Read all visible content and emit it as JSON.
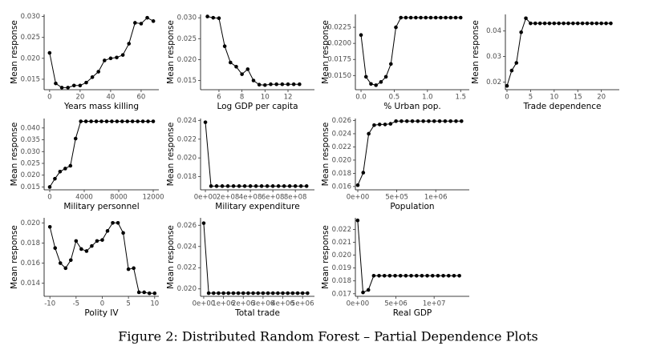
{
  "chart_data": [
    {
      "type": "line",
      "xlabel": "Years mass killing",
      "ylabel": "Mean response",
      "x": [
        0,
        4,
        8,
        12,
        16,
        20,
        24,
        28,
        32,
        36,
        40,
        44,
        48,
        52,
        56,
        60,
        64,
        68
      ],
      "values": [
        0.0213,
        0.014,
        0.013,
        0.013,
        0.0135,
        0.0135,
        0.0142,
        0.0155,
        0.0168,
        0.0195,
        0.02,
        0.0202,
        0.0208,
        0.0235,
        0.0285,
        0.0283,
        0.0297,
        0.0289
      ],
      "xlim": [
        -3.6,
        71.6
      ],
      "xticks": [
        0,
        20,
        40,
        60
      ],
      "ylim": [
        0.0125,
        0.0305
      ],
      "yticks": [
        0.015,
        {
          "value": 0.02,
          "label": "0.020"
        },
        0.025,
        {
          "value": 0.03,
          "label": "0.030"
        }
      ]
    },
    {
      "type": "line",
      "xlabel": "Log GDP per capita",
      "ylabel": "Mean response",
      "x": [
        5,
        5.5,
        6,
        6.5,
        7,
        7.5,
        8,
        8.5,
        9,
        9.5,
        10,
        10.5,
        11,
        11.5,
        12,
        12.5,
        13
      ],
      "values": [
        0.0303,
        0.03,
        0.0299,
        0.0232,
        0.0193,
        0.0183,
        0.0165,
        0.0177,
        0.015,
        0.014,
        0.0139,
        0.0141,
        0.0141,
        0.0141,
        0.0141,
        0.0141,
        0.0141
      ],
      "xlim": [
        4.4,
        14.3
      ],
      "xticks": [
        6,
        8,
        10,
        12
      ],
      "ylim": [
        0.0128,
        0.0308
      ],
      "yticks": [
        0.015,
        {
          "value": 0.02,
          "label": "0.020"
        },
        0.025,
        {
          "value": 0.03,
          "label": "0.030"
        }
      ]
    },
    {
      "type": "line",
      "xlabel": "% Urban pop.",
      "ylabel": "Mean response",
      "x": [
        0,
        0.075,
        0.15,
        0.225,
        0.3,
        0.375,
        0.45,
        0.525,
        0.6,
        0.675,
        0.75,
        0.825,
        0.9,
        0.975,
        1.05,
        1.125,
        1.2,
        1.275,
        1.35,
        1.425,
        1.5
      ],
      "values": [
        0.0213,
        0.0148,
        0.0137,
        0.0135,
        0.014,
        0.0148,
        0.0168,
        0.0225,
        0.024,
        0.024,
        0.024,
        0.024,
        0.024,
        0.024,
        0.024,
        0.024,
        0.024,
        0.024,
        0.024,
        0.024,
        0.024
      ],
      "xlim": [
        -0.085,
        1.63
      ],
      "xticks": [
        {
          "value": 0,
          "label": "0.0"
        },
        0.5,
        {
          "value": 1,
          "label": "1.0"
        },
        1.5
      ],
      "ylim": [
        0.0128,
        0.0245
      ],
      "yticks": [
        {
          "value": 0.015,
          "label": "0.0150"
        },
        0.0175,
        {
          "value": 0.02,
          "label": "0.0200"
        },
        0.0225
      ]
    },
    {
      "type": "line",
      "xlabel": "Trade dependence",
      "ylabel": "Mean response",
      "x": [
        0,
        1,
        2,
        3,
        4,
        5,
        6,
        7,
        8,
        9,
        10,
        11,
        12,
        13,
        14,
        15,
        16,
        17,
        18,
        19,
        20,
        21,
        22
      ],
      "values": [
        0.0185,
        0.0245,
        0.0275,
        0.0395,
        0.045,
        0.043,
        0.043,
        0.043,
        0.043,
        0.043,
        0.043,
        0.043,
        0.043,
        0.043,
        0.043,
        0.043,
        0.043,
        0.043,
        0.043,
        0.043,
        0.043,
        0.043,
        0.043
      ],
      "xlim": [
        -0.34,
        23.8
      ],
      "xticks": [
        0,
        5,
        10,
        15,
        20
      ],
      "ylim": [
        0.017,
        0.0465
      ],
      "yticks": [
        0.02,
        0.03,
        0.04
      ]
    },
    {
      "type": "line",
      "xlabel": "Military personnel",
      "ylabel": "Mean response",
      "x": [
        0,
        600,
        1200,
        1800,
        2400,
        3000,
        3600,
        4200,
        4800,
        5400,
        6000,
        6600,
        7200,
        7800,
        8400,
        9000,
        9600,
        10200,
        10800,
        11400,
        12000
      ],
      "values": [
        0.015,
        0.0185,
        0.0215,
        0.0228,
        0.024,
        0.0355,
        0.0428,
        0.0428,
        0.0428,
        0.0428,
        0.0428,
        0.0428,
        0.0428,
        0.0428,
        0.0428,
        0.0428,
        0.0428,
        0.0428,
        0.0428,
        0.0428,
        0.0428
      ],
      "xlim": [
        -650,
        12650
      ],
      "xticks": [
        0,
        4000,
        8000,
        12000
      ],
      "ylim": [
        0.0138,
        0.044
      ],
      "yticks": [
        0.015,
        {
          "value": 0.02,
          "label": "0.020"
        },
        0.025,
        {
          "value": 0.03,
          "label": "0.030"
        },
        0.035,
        {
          "value": 0.04,
          "label": "0.040"
        }
      ]
    },
    {
      "type": "line",
      "xlabel": "Military expenditure",
      "ylabel": "Mean response",
      "x": [
        0,
        50000000,
        100000000,
        150000000,
        200000000,
        250000000,
        300000000,
        350000000,
        400000000,
        450000000,
        500000000,
        550000000,
        600000000,
        650000000,
        700000000,
        750000000,
        800000000,
        850000000,
        900000000
      ],
      "values": [
        0.0238,
        0.017,
        0.017,
        0.017,
        0.017,
        0.017,
        0.017,
        0.017,
        0.017,
        0.017,
        0.017,
        0.017,
        0.017,
        0.017,
        0.017,
        0.017,
        0.017,
        0.017,
        0.017
      ],
      "xlim": [
        -43000000,
        970000000
      ],
      "xticks": [
        {
          "value": 0,
          "label": "0e+00"
        },
        {
          "value": 200000000,
          "label": "2e+08"
        },
        {
          "value": 400000000,
          "label": "4e+08"
        },
        {
          "value": 600000000,
          "label": "6e+08"
        },
        {
          "value": 800000000,
          "label": "8e+08"
        }
      ],
      "ylim": [
        0.0166,
        0.0242
      ],
      "yticks": [
        0.018,
        {
          "value": 0.02,
          "label": "0.020"
        },
        0.022,
        0.024
      ]
    },
    {
      "type": "line",
      "xlabel": "Population",
      "ylabel": "Mean response",
      "x": [
        0,
        70000,
        140000,
        210000,
        280000,
        350000,
        420000,
        490000,
        560000,
        630000,
        700000,
        770000,
        840000,
        910000,
        980000,
        1050000,
        1120000,
        1190000,
        1260000,
        1330000
      ],
      "values": [
        0.0162,
        0.0181,
        0.024,
        0.0253,
        0.0254,
        0.0254,
        0.0255,
        0.0259,
        0.0259,
        0.0259,
        0.0259,
        0.0259,
        0.0259,
        0.0259,
        0.0259,
        0.0259,
        0.0259,
        0.0259,
        0.0259,
        0.0259
      ],
      "xlim": [
        -31000,
        1430000
      ],
      "xticks": [
        {
          "value": 0,
          "label": "0e+00"
        },
        {
          "value": 500000,
          "label": "5e+05"
        },
        {
          "value": 1000000,
          "label": "1e+06"
        }
      ],
      "ylim": [
        0.0155,
        0.0263
      ],
      "yticks": [
        0.016,
        0.018,
        {
          "value": 0.02,
          "label": "0.020"
        },
        0.022,
        0.024,
        0.026
      ]
    },
    {
      "type": "line",
      "xlabel": "Polity IV",
      "ylabel": "Mean response",
      "x": [
        -10,
        -9,
        -8,
        -7,
        -6,
        -5,
        -4,
        -3,
        -2,
        -1,
        0,
        1,
        2,
        3,
        4,
        5,
        6,
        7,
        8,
        9,
        10
      ],
      "values": [
        0.0196,
        0.0175,
        0.016,
        0.0155,
        0.0163,
        0.0182,
        0.0174,
        0.0172,
        0.0177,
        0.0182,
        0.0183,
        0.0192,
        0.02,
        0.02,
        0.019,
        0.0154,
        0.0155,
        0.0131,
        0.0131,
        0.013,
        0.013
      ],
      "xlim": [
        -11.1,
        10.8
      ],
      "xticks": [
        -10,
        -5,
        0,
        5,
        10
      ],
      "ylim": [
        0.0127,
        0.0205
      ],
      "yticks": [
        0.014,
        0.016,
        0.018,
        {
          "value": 0.02,
          "label": "0.020"
        }
      ]
    },
    {
      "type": "line",
      "xlabel": "Total trade",
      "ylabel": "Mean response",
      "x": [
        0,
        250000,
        500000,
        750000,
        1000000,
        1250000,
        1500000,
        1750000,
        2000000,
        2250000,
        2500000,
        2750000,
        3000000,
        3250000,
        3500000,
        3750000,
        4000000,
        4250000,
        4500000,
        4750000,
        5000000,
        5250000
      ],
      "values": [
        0.0262,
        0.0196,
        0.0196,
        0.0196,
        0.0196,
        0.0196,
        0.0196,
        0.0196,
        0.0196,
        0.0196,
        0.0196,
        0.0196,
        0.0196,
        0.0196,
        0.0196,
        0.0196,
        0.0196,
        0.0196,
        0.0196,
        0.0196,
        0.0196,
        0.0196
      ],
      "xlim": [
        -160000,
        5600000
      ],
      "xticks": [
        {
          "value": 0,
          "label": "0e+00"
        },
        {
          "value": 1000000,
          "label": "1e+06"
        },
        {
          "value": 2000000,
          "label": "2e+06"
        },
        {
          "value": 3000000,
          "label": "3e+06"
        },
        {
          "value": 4000000,
          "label": "4e+06"
        },
        {
          "value": 5000000,
          "label": "5e+06"
        }
      ],
      "ylim": [
        0.0193,
        0.0267
      ],
      "yticks": [
        {
          "value": 0.02,
          "label": "0.020"
        },
        0.022,
        0.024,
        0.026
      ]
    },
    {
      "type": "line",
      "xlabel": "Real GDP",
      "ylabel": "Mean response",
      "x": [
        0,
        700000,
        1400000,
        2100000,
        2800000,
        3500000,
        4200000,
        4900000,
        5600000,
        6300000,
        7000000,
        7700000,
        8400000,
        9100000,
        9800000,
        10500000,
        11200000,
        11900000,
        12600000,
        13300000
      ],
      "values": [
        0.0227,
        0.0171,
        0.0173,
        0.0184,
        0.0184,
        0.0184,
        0.0184,
        0.0184,
        0.0184,
        0.0184,
        0.0184,
        0.0184,
        0.0184,
        0.0184,
        0.0184,
        0.0184,
        0.0184,
        0.0184,
        0.0184,
        0.0184
      ],
      "xlim": [
        -300000,
        14600000
      ],
      "xticks": [
        {
          "value": 0,
          "label": "0e+00"
        },
        {
          "value": 5000000,
          "label": "5e+06"
        },
        {
          "value": 10000000,
          "label": "1e+07"
        }
      ],
      "ylim": [
        0.0168,
        0.0229
      ],
      "yticks": [
        0.017,
        0.018,
        0.019,
        {
          "value": 0.02,
          "label": "0.020"
        },
        0.021,
        0.022
      ]
    }
  ],
  "caption": "Figure 2: Distributed Random Forest – Partial Dependence Plots"
}
